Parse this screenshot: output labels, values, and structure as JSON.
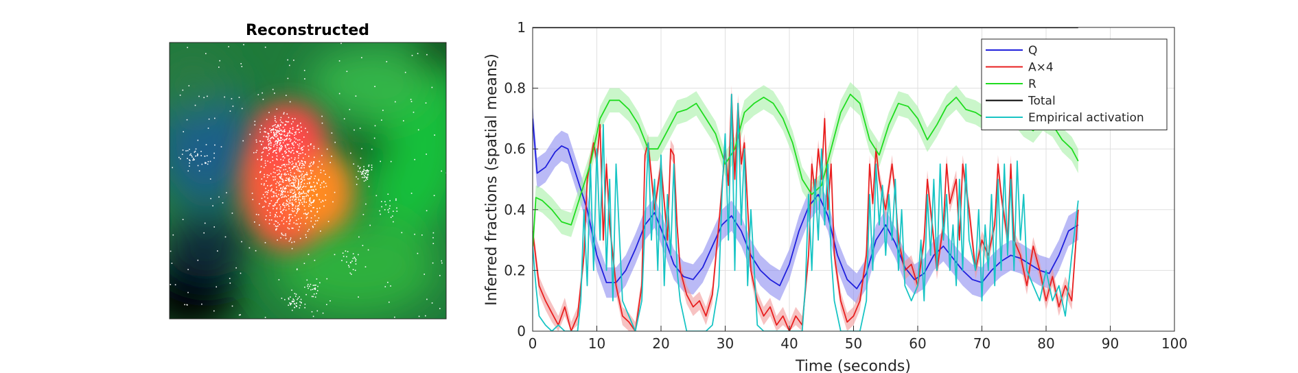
{
  "panel_left": {
    "title": "Reconstructed",
    "image": "heatmap-reconstruction-with-scatter",
    "scatter_color": "#ffffff"
  },
  "chart_data": {
    "type": "line",
    "xlabel": "Time (seconds)",
    "ylabel": "Inferred fractions (spatial means)",
    "xlim": [
      0,
      100
    ],
    "ylim": [
      0,
      1
    ],
    "xticks": [
      0,
      10,
      20,
      30,
      40,
      50,
      60,
      70,
      80,
      90,
      100
    ],
    "yticks": [
      0,
      0.2,
      0.4,
      0.6,
      0.8,
      1
    ],
    "ytick_labels": [
      "0",
      "0.2",
      "0.4",
      "0.6",
      "0.8",
      "1"
    ],
    "grid": true,
    "legend_position": "top-right",
    "series": [
      {
        "name": "Q",
        "color": "#1f1fdc",
        "band_color": "#8c8cf0",
        "x": [
          0,
          0.7,
          2,
          3.5,
          4.5,
          5.5,
          7,
          8.5,
          10,
          11.5,
          13,
          14.5,
          16,
          17.5,
          19,
          20.5,
          22,
          23.5,
          25,
          26.5,
          28,
          29.5,
          31,
          32.5,
          34,
          35.5,
          37,
          38.5,
          40,
          41.5,
          43,
          44.5,
          46,
          47.5,
          49,
          50.5,
          52,
          53.5,
          55,
          56.5,
          58,
          59.5,
          61,
          62.5,
          64,
          65.5,
          67,
          68.5,
          70,
          71.5,
          73,
          74.5,
          76,
          77.5,
          79,
          80.5,
          82,
          83.5,
          85
        ],
        "values": [
          0.7,
          0.52,
          0.54,
          0.59,
          0.61,
          0.6,
          0.5,
          0.4,
          0.25,
          0.16,
          0.16,
          0.2,
          0.27,
          0.35,
          0.39,
          0.31,
          0.22,
          0.18,
          0.17,
          0.21,
          0.28,
          0.35,
          0.38,
          0.33,
          0.25,
          0.2,
          0.17,
          0.15,
          0.22,
          0.33,
          0.41,
          0.45,
          0.38,
          0.25,
          0.17,
          0.14,
          0.19,
          0.3,
          0.35,
          0.29,
          0.21,
          0.17,
          0.19,
          0.25,
          0.28,
          0.24,
          0.2,
          0.17,
          0.16,
          0.2,
          0.23,
          0.25,
          0.24,
          0.22,
          0.2,
          0.19,
          0.25,
          0.33,
          0.35
        ],
        "band": 0.05
      },
      {
        "name": "A×4",
        "color": "#e81f1f",
        "band_color": "#f29a9a",
        "x": [
          0,
          1,
          2,
          3,
          4,
          5,
          6,
          7,
          8,
          8.5,
          9.5,
          10,
          10.5,
          11,
          11.5,
          12,
          13,
          14,
          15,
          16,
          17,
          17.5,
          18,
          19,
          20,
          21,
          21.5,
          22,
          22.5,
          23,
          24,
          25,
          26,
          27,
          28,
          29,
          30,
          30.5,
          31,
          31.5,
          32,
          32.5,
          33,
          34,
          35,
          36,
          37,
          38,
          39,
          40,
          41,
          42,
          43,
          43.5,
          44,
          44.5,
          45,
          45.5,
          46,
          46.5,
          47,
          48,
          49,
          50,
          51,
          52,
          52.5,
          53,
          53.5,
          54,
          55,
          56,
          56.5,
          57,
          58,
          59,
          60,
          61,
          61.5,
          62,
          63,
          64,
          64.5,
          65,
          66,
          66.5,
          67,
          68,
          69,
          70,
          71,
          72,
          72.5,
          73,
          74,
          74.5,
          75,
          76,
          77,
          78,
          79,
          80,
          81,
          82,
          83,
          84,
          85
        ],
        "values": [
          0.33,
          0.15,
          0.1,
          0.06,
          0.02,
          0.08,
          0.0,
          0.05,
          0.25,
          0.5,
          0.62,
          0.56,
          0.68,
          0.3,
          0.55,
          0.35,
          0.15,
          0.05,
          0.03,
          0.0,
          0.15,
          0.58,
          0.62,
          0.4,
          0.55,
          0.3,
          0.6,
          0.58,
          0.35,
          0.2,
          0.12,
          0.08,
          0.1,
          0.05,
          0.12,
          0.35,
          0.6,
          0.48,
          0.78,
          0.5,
          0.75,
          0.55,
          0.62,
          0.2,
          0.1,
          0.05,
          0.08,
          0.02,
          0.05,
          0.0,
          0.05,
          0.02,
          0.25,
          0.55,
          0.45,
          0.6,
          0.5,
          0.7,
          0.4,
          0.55,
          0.25,
          0.1,
          0.03,
          0.05,
          0.1,
          0.25,
          0.55,
          0.42,
          0.6,
          0.5,
          0.4,
          0.55,
          0.45,
          0.3,
          0.2,
          0.22,
          0.15,
          0.3,
          0.5,
          0.4,
          0.2,
          0.35,
          0.55,
          0.42,
          0.5,
          0.3,
          0.55,
          0.4,
          0.2,
          0.3,
          0.25,
          0.35,
          0.55,
          0.45,
          0.3,
          0.55,
          0.3,
          0.25,
          0.15,
          0.28,
          0.2,
          0.1,
          0.18,
          0.08,
          0.15,
          0.1,
          0.4
        ],
        "band": 0.03
      },
      {
        "name": "R",
        "color": "#1fdc1f",
        "band_color": "#a6f0a6",
        "x": [
          0,
          0.5,
          1.5,
          3,
          4.5,
          6,
          7.5,
          9,
          10.5,
          12,
          13.5,
          15,
          16.5,
          18,
          19.5,
          21,
          22.5,
          24,
          25.5,
          27,
          28.5,
          30,
          31.5,
          33,
          34.5,
          36,
          37.5,
          39,
          40.5,
          42,
          43.5,
          45,
          46.5,
          48,
          49.5,
          51,
          52.5,
          54,
          55.5,
          57,
          58.5,
          60,
          61.5,
          63,
          64.5,
          66,
          67.5,
          69,
          70.5,
          72,
          73.5,
          75,
          76.5,
          78,
          79.5,
          81,
          82.5,
          84,
          85
        ],
        "values": [
          0.27,
          0.44,
          0.43,
          0.4,
          0.36,
          0.35,
          0.45,
          0.55,
          0.7,
          0.76,
          0.76,
          0.73,
          0.68,
          0.6,
          0.6,
          0.66,
          0.72,
          0.73,
          0.75,
          0.7,
          0.65,
          0.55,
          0.6,
          0.72,
          0.75,
          0.77,
          0.75,
          0.7,
          0.62,
          0.5,
          0.45,
          0.48,
          0.6,
          0.72,
          0.78,
          0.75,
          0.63,
          0.58,
          0.68,
          0.75,
          0.74,
          0.7,
          0.63,
          0.68,
          0.74,
          0.77,
          0.73,
          0.72,
          0.7,
          0.74,
          0.76,
          0.72,
          0.68,
          0.66,
          0.7,
          0.68,
          0.63,
          0.6,
          0.56
        ],
        "band": 0.04
      },
      {
        "name": "Total",
        "color": "#000000",
        "x": [
          0,
          85
        ],
        "values": [
          1,
          1
        ]
      },
      {
        "name": "Empirical activation",
        "color": "#17c4c4",
        "x": [
          0,
          0.5,
          1,
          2,
          3,
          4,
          5,
          6,
          7,
          7.5,
          8,
          8.5,
          9,
          9.5,
          10,
          10.5,
          11,
          11.5,
          12,
          12.5,
          13,
          14,
          15,
          16,
          17,
          17.5,
          18,
          18.5,
          19,
          19.5,
          20,
          20.5,
          21,
          21.5,
          22,
          22.5,
          23,
          24,
          25,
          26,
          27,
          28,
          29,
          29.5,
          30,
          30.5,
          31,
          31.5,
          32,
          32.5,
          33,
          33.5,
          34,
          35,
          36,
          37,
          38,
          39,
          40,
          41,
          42,
          42.5,
          43,
          43.5,
          44,
          44.5,
          45,
          45.5,
          46,
          46.5,
          47,
          48,
          49,
          50,
          51,
          52,
          52.5,
          53,
          53.5,
          54,
          54.5,
          55,
          55.5,
          56,
          56.5,
          57,
          57.5,
          58,
          59,
          60,
          60.5,
          61,
          61.5,
          62,
          62.5,
          63,
          63.5,
          64,
          64.5,
          65,
          65.5,
          66,
          66.5,
          67,
          67.5,
          68,
          69,
          69.5,
          70,
          70.5,
          71,
          71.5,
          72,
          72.5,
          73,
          73.5,
          74,
          74.5,
          75,
          75.5,
          76,
          76.5,
          77,
          78,
          79,
          80,
          81,
          82,
          83,
          84,
          85
        ],
        "values": [
          0.28,
          0.15,
          0.05,
          0.02,
          0.0,
          0.02,
          0.0,
          0.0,
          0.0,
          0.1,
          0.4,
          0.15,
          0.55,
          0.2,
          0.6,
          0.3,
          0.68,
          0.2,
          0.5,
          0.1,
          0.55,
          0.1,
          0.05,
          0.0,
          0.1,
          0.35,
          0.62,
          0.3,
          0.5,
          0.2,
          0.58,
          0.15,
          0.45,
          0.25,
          0.55,
          0.2,
          0.1,
          0.0,
          0.0,
          0.0,
          0.0,
          0.02,
          0.15,
          0.45,
          0.65,
          0.3,
          0.78,
          0.2,
          0.75,
          0.35,
          0.6,
          0.15,
          0.4,
          0.02,
          0.0,
          0.0,
          0.0,
          0.0,
          0.0,
          0.0,
          0.0,
          0.15,
          0.45,
          0.2,
          0.5,
          0.3,
          0.6,
          0.35,
          0.55,
          0.25,
          0.1,
          0.0,
          0.0,
          0.0,
          0.0,
          0.1,
          0.45,
          0.2,
          0.55,
          0.35,
          0.48,
          0.25,
          0.45,
          0.3,
          0.5,
          0.2,
          0.4,
          0.15,
          0.1,
          0.15,
          0.3,
          0.1,
          0.45,
          0.25,
          0.5,
          0.2,
          0.55,
          0.3,
          0.45,
          0.2,
          0.35,
          0.15,
          0.5,
          0.2,
          0.55,
          0.3,
          0.2,
          0.4,
          0.1,
          0.35,
          0.2,
          0.45,
          0.15,
          0.5,
          0.2,
          0.55,
          0.25,
          0.5,
          0.2,
          0.56,
          0.3,
          0.45,
          0.2,
          0.15,
          0.1,
          0.2,
          0.1,
          0.15,
          0.05,
          0.25,
          0.43
        ]
      }
    ]
  }
}
